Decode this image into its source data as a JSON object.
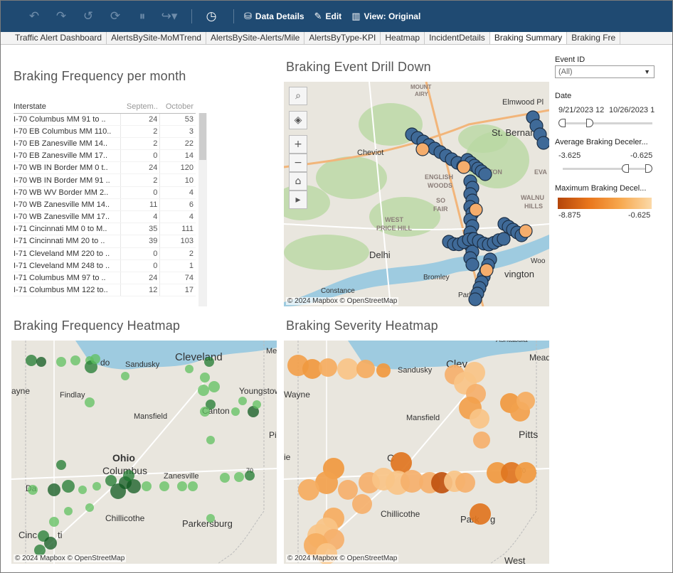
{
  "toolbar": {
    "buttons": [
      {
        "label": "Data Details",
        "icon": "cylinder-icon"
      },
      {
        "label": "Edit",
        "icon": "edit-icon"
      },
      {
        "label": "View: Original",
        "icon": "bar-chart-icon"
      }
    ]
  },
  "tabs": [
    {
      "label": "Traffic Alert Dashboard",
      "active": false
    },
    {
      "label": "AlertsBySite-MoMTrend",
      "active": false
    },
    {
      "label": "AlertsBySite-Alerts/Mile",
      "active": false
    },
    {
      "label": "AlertsByType-KPI",
      "active": false
    },
    {
      "label": "Heatmap",
      "active": false
    },
    {
      "label": "IncidentDetails",
      "active": false
    },
    {
      "label": "Braking Summary",
      "active": true
    },
    {
      "label": "Braking Fre",
      "active": false
    }
  ],
  "freq_table": {
    "title": "Braking Frequency per month",
    "columns": [
      "Interstate",
      "Septem..",
      "October"
    ],
    "rows": [
      [
        "I-70 Columbus MM 91 to ..",
        "24",
        "53"
      ],
      [
        "I-70 EB Columbus MM 110..",
        "2",
        "3"
      ],
      [
        "I-70 EB Zanesville MM 14..",
        "2",
        "22"
      ],
      [
        "I-70 EB Zanesville MM 17..",
        "0",
        "14"
      ],
      [
        "I-70 WB IN Border MM 0 t..",
        "24",
        "120"
      ],
      [
        "I-70 WB IN Border MM 91 ..",
        "2",
        "10"
      ],
      [
        "I-70 WB WV Border MM 2..",
        "0",
        "4"
      ],
      [
        "I-70 WB Zanesville MM 14..",
        "11",
        "6"
      ],
      [
        "I-70 WB Zanesville MM 17..",
        "4",
        "4"
      ],
      [
        "I-71 Cincinnati MM 0 to M..",
        "35",
        "111"
      ],
      [
        "I-71 Cincinnati MM 20 to ..",
        "39",
        "103"
      ],
      [
        "I-71 Cleveland MM 220 to ..",
        "0",
        "2"
      ],
      [
        "I-71 Cleveland MM 248 to ..",
        "0",
        "1"
      ],
      [
        "I-71 Columbus MM 97 to ..",
        "24",
        "74"
      ],
      [
        "I-71 Columbus MM 122 to..",
        "12",
        "17"
      ]
    ]
  },
  "drilldown": {
    "title": "Braking Event Drill Down",
    "attribution": "© 2024 Mapbox  © OpenStreetMap",
    "places": [
      "MOUNT",
      "AIRY",
      "Elmwood Pl",
      "St. Bernard",
      "Cheviot",
      "ENGLISH",
      "WOODS",
      "CLIFTON",
      "EVA",
      "SO",
      "FAIR",
      "WALNU",
      "HILLS",
      "WEST",
      "PRICE HILL",
      "Delhi",
      "Woo",
      "Bromley",
      "vington",
      "Constance",
      "Park Hi"
    ]
  },
  "freq_heatmap": {
    "title": "Braking Frequency Heatmap",
    "attribution": "© 2024 Mapbox  © OpenStreetMap",
    "places": [
      "Me",
      "do",
      "Sandusky",
      "Cleveland",
      "Youngstow",
      "ayne",
      "Findlay",
      "Mansfield",
      "Canton",
      "Pi",
      "Ohio",
      "Columbus",
      "Zanesville",
      "70",
      "Da",
      "Chillicothe",
      "Parkersburg",
      "Cinc",
      "ti"
    ]
  },
  "sev_heatmap": {
    "title": "Braking Severity Heatmap",
    "attribution": "© 2024 Mapbox  © OpenStreetMap",
    "places": [
      "Ashtabula",
      "Mead",
      "Sandusky",
      "Clev",
      "Wayne",
      "Mansfield",
      "Pitts",
      "ie",
      "C",
      "70",
      "Chillicothe",
      "Park",
      "g",
      "West"
    ]
  },
  "filters": {
    "event_id_label": "Event ID",
    "event_id_value": "(All)",
    "date_label": "Date",
    "date_min": "9/21/2023 12",
    "date_max": "10/26/2023 1",
    "avg_label": "Average Braking Deceler...",
    "avg_min": "-3.625",
    "avg_max": "-0.625",
    "max_label": "Maximum Braking Decel...",
    "max_min": "-8.875",
    "max_max": "-0.625"
  },
  "colors": {
    "toolbar_bg": "#1f4a72",
    "dot_fill": "#3f6a98",
    "freq_green_dark": "#0f5a1f",
    "freq_green_light": "#5fc05f",
    "severity_dark": "#c0530f",
    "severity_light": "#f8c487"
  }
}
